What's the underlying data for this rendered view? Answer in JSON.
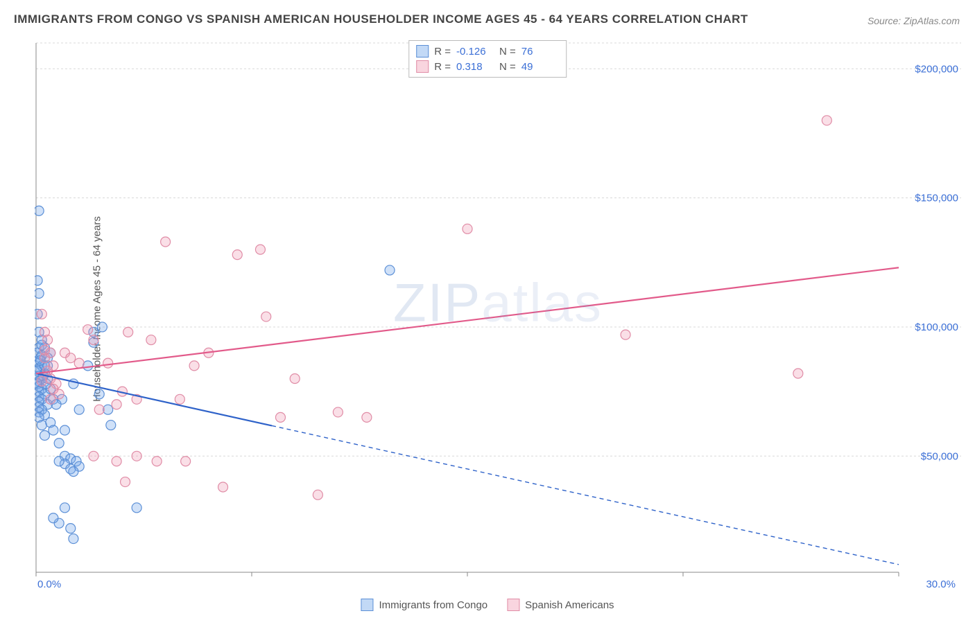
{
  "title": "IMMIGRANTS FROM CONGO VS SPANISH AMERICAN HOUSEHOLDER INCOME AGES 45 - 64 YEARS CORRELATION CHART",
  "source": "Source: ZipAtlas.com",
  "watermark": {
    "bold": "ZIP",
    "thin": "atlas"
  },
  "chart": {
    "type": "scatter",
    "background_color": "#ffffff",
    "grid_color": "#d8d8d8",
    "axis_color": "#888888",
    "plot_border_color": "#aaaaaa",
    "xlim": [
      0,
      30
    ],
    "ylim": [
      5000,
      210000
    ],
    "x_ticks": [
      0,
      7.5,
      15,
      22.5,
      30
    ],
    "x_tick_labels_shown": {
      "0": "0.0%",
      "30": "30.0%"
    },
    "y_ticks": [
      50000,
      100000,
      150000,
      200000
    ],
    "y_tick_labels": [
      "$50,000",
      "$100,000",
      "$150,000",
      "$200,000"
    ],
    "y_axis_label": "Householder Income Ages 45 - 64 years",
    "axis_label_fontsize": 15,
    "tick_label_color": "#3b6fd6",
    "series": [
      {
        "name": "Immigrants from Congo",
        "marker_color_fill": "rgba(120,170,235,0.35)",
        "marker_color_stroke": "#5b8fd6",
        "marker_radius": 7,
        "line_color": "#2e62c9",
        "line_width": 2.2,
        "R": "-0.126",
        "N": "76",
        "trend": {
          "x1": 0,
          "y1": 82000,
          "x2": 30,
          "y2": 8000,
          "solid_until_x": 8.2
        },
        "points": [
          [
            0.1,
            145000
          ],
          [
            0.05,
            118000
          ],
          [
            0.1,
            113000
          ],
          [
            0.05,
            105000
          ],
          [
            0.1,
            98000
          ],
          [
            0.2,
            95000
          ],
          [
            0.1,
            92000
          ],
          [
            0.05,
            90000
          ],
          [
            0.15,
            88000
          ],
          [
            0.1,
            86000
          ],
          [
            0.2,
            85000
          ],
          [
            0.1,
            84000
          ],
          [
            0.05,
            83000
          ],
          [
            0.3,
            82000
          ],
          [
            0.1,
            81000
          ],
          [
            0.2,
            80000
          ],
          [
            0.1,
            79000
          ],
          [
            0.05,
            78000
          ],
          [
            0.1,
            77000
          ],
          [
            0.2,
            76000
          ],
          [
            0.1,
            75000
          ],
          [
            0.3,
            74000
          ],
          [
            0.1,
            73000
          ],
          [
            0.2,
            72000
          ],
          [
            0.1,
            71000
          ],
          [
            0.4,
            70000
          ],
          [
            0.1,
            69000
          ],
          [
            0.2,
            68000
          ],
          [
            0.1,
            67000
          ],
          [
            0.3,
            66000
          ],
          [
            0.1,
            65000
          ],
          [
            0.5,
            63000
          ],
          [
            0.2,
            62000
          ],
          [
            0.6,
            60000
          ],
          [
            0.3,
            58000
          ],
          [
            0.8,
            55000
          ],
          [
            1.0,
            50000
          ],
          [
            1.2,
            49000
          ],
          [
            1.4,
            48000
          ],
          [
            1.0,
            60000
          ],
          [
            0.9,
            72000
          ],
          [
            1.3,
            78000
          ],
          [
            1.5,
            68000
          ],
          [
            1.8,
            85000
          ],
          [
            2.0,
            94000
          ],
          [
            2.2,
            74000
          ],
          [
            2.0,
            98000
          ],
          [
            2.5,
            68000
          ],
          [
            2.3,
            100000
          ],
          [
            2.6,
            62000
          ],
          [
            1.0,
            47000
          ],
          [
            1.2,
            45000
          ],
          [
            1.5,
            46000
          ],
          [
            1.3,
            44000
          ],
          [
            3.5,
            30000
          ],
          [
            1.0,
            30000
          ],
          [
            1.2,
            22000
          ],
          [
            1.3,
            18000
          ],
          [
            0.8,
            24000
          ],
          [
            0.6,
            26000
          ],
          [
            0.8,
            48000
          ],
          [
            0.5,
            90000
          ],
          [
            0.4,
            88000
          ],
          [
            0.3,
            92000
          ],
          [
            0.2,
            89000
          ],
          [
            0.4,
            80000
          ],
          [
            0.5,
            76000
          ],
          [
            0.6,
            72000
          ],
          [
            0.7,
            70000
          ],
          [
            0.3,
            85000
          ],
          [
            0.2,
            93000
          ],
          [
            0.4,
            85000
          ],
          [
            12.3,
            122000
          ],
          [
            0.15,
            87000
          ],
          [
            0.25,
            81000
          ],
          [
            0.35,
            78000
          ]
        ]
      },
      {
        "name": "Spanish Americans",
        "marker_color_fill": "rgba(240,150,175,0.30)",
        "marker_color_stroke": "#e08ca6",
        "marker_radius": 7,
        "line_color": "#e25a8a",
        "line_width": 2.2,
        "R": "0.318",
        "N": "49",
        "trend": {
          "x1": 0,
          "y1": 82000,
          "x2": 30,
          "y2": 123000,
          "solid_until_x": 30
        },
        "points": [
          [
            0.2,
            105000
          ],
          [
            0.3,
            98000
          ],
          [
            0.4,
            95000
          ],
          [
            0.5,
            90000
          ],
          [
            0.3,
            88000
          ],
          [
            0.6,
            85000
          ],
          [
            0.4,
            83000
          ],
          [
            0.5,
            80000
          ],
          [
            0.7,
            78000
          ],
          [
            0.6,
            76000
          ],
          [
            0.8,
            74000
          ],
          [
            0.5,
            72000
          ],
          [
            1.0,
            90000
          ],
          [
            1.2,
            88000
          ],
          [
            1.5,
            86000
          ],
          [
            1.8,
            99000
          ],
          [
            2.0,
            95000
          ],
          [
            2.2,
            68000
          ],
          [
            2.5,
            86000
          ],
          [
            2.8,
            70000
          ],
          [
            3.0,
            75000
          ],
          [
            3.2,
            98000
          ],
          [
            3.5,
            50000
          ],
          [
            4.0,
            95000
          ],
          [
            4.2,
            48000
          ],
          [
            4.5,
            133000
          ],
          [
            5.0,
            72000
          ],
          [
            5.5,
            85000
          ],
          [
            6.0,
            90000
          ],
          [
            7.0,
            128000
          ],
          [
            7.8,
            130000
          ],
          [
            8.0,
            104000
          ],
          [
            8.5,
            65000
          ],
          [
            9.0,
            80000
          ],
          [
            9.8,
            35000
          ],
          [
            10.5,
            67000
          ],
          [
            11.5,
            65000
          ],
          [
            15.0,
            138000
          ],
          [
            20.5,
            97000
          ],
          [
            26.5,
            82000
          ],
          [
            27.5,
            180000
          ],
          [
            2.0,
            50000
          ],
          [
            2.8,
            48000
          ],
          [
            3.5,
            72000
          ],
          [
            5.2,
            48000
          ],
          [
            6.5,
            38000
          ],
          [
            3.1,
            40000
          ],
          [
            0.2,
            79000
          ],
          [
            0.3,
            91000
          ]
        ]
      }
    ]
  },
  "stats_box": {
    "border_color": "#bbbbbb",
    "rows": [
      {
        "swatch_fill": "rgba(120,170,235,0.45)",
        "swatch_stroke": "#5b8fd6",
        "r_label": "R =",
        "r_val": "-0.126",
        "n_label": "N =",
        "n_val": "76"
      },
      {
        "swatch_fill": "rgba(240,150,175,0.40)",
        "swatch_stroke": "#e08ca6",
        "r_label": "R =",
        "r_val": "0.318",
        "n_label": "N =",
        "n_val": "49"
      }
    ]
  },
  "legend": {
    "items": [
      {
        "swatch_fill": "rgba(120,170,235,0.45)",
        "swatch_stroke": "#5b8fd6",
        "label": "Immigrants from Congo"
      },
      {
        "swatch_fill": "rgba(240,150,175,0.40)",
        "swatch_stroke": "#e08ca6",
        "label": "Spanish Americans"
      }
    ]
  }
}
